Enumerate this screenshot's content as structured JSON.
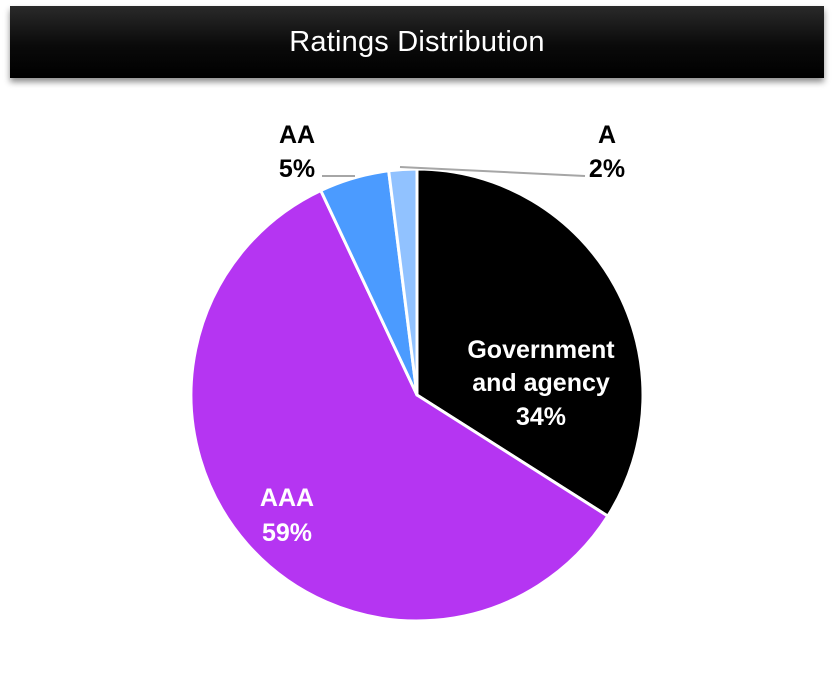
{
  "title": "Ratings Distribution",
  "colors": {
    "title_bar": "#000000",
    "title_text": "#ffffff",
    "slice_border": "#ffffff",
    "leader_line": "#a6a6a6"
  },
  "chart_data": {
    "type": "pie",
    "title": "Ratings Distribution",
    "start_angle_deg": 0,
    "direction": "clockwise",
    "slices": [
      {
        "label": "Government and agency",
        "value": 34,
        "display": "34%",
        "color": "#000000",
        "label_color": "#ffffff"
      },
      {
        "label": "AAA",
        "value": 59,
        "display": "59%",
        "color": "#b535f2",
        "label_color": "#ffffff"
      },
      {
        "label": "AA",
        "value": 5,
        "display": "5%",
        "color": "#4b9bff",
        "label_color": "#000000"
      },
      {
        "label": "A",
        "value": 2,
        "display": "2%",
        "color": "#91c2ff",
        "label_color": "#000000"
      }
    ]
  }
}
